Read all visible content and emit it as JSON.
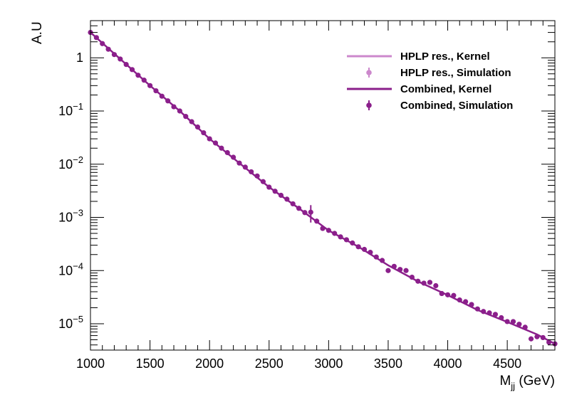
{
  "chart_data": {
    "type": "line",
    "title": "",
    "xlabel": {
      "main": "M",
      "sub": "jj",
      "unit": " (GeV)"
    },
    "ylabel": "A.U",
    "xlim": [
      1000,
      4900
    ],
    "ylim": [
      3.2e-06,
      5
    ],
    "yscale": "log",
    "grid": false,
    "legend_position": "top-right",
    "x_ticks": [
      {
        "value": 1000,
        "label": "1000"
      },
      {
        "value": 1500,
        "label": "1500"
      },
      {
        "value": 2000,
        "label": "2000"
      },
      {
        "value": 2500,
        "label": "2500"
      },
      {
        "value": 3000,
        "label": "3000"
      },
      {
        "value": 3500,
        "label": "3500"
      },
      {
        "value": 4000,
        "label": "4000"
      },
      {
        "value": 4500,
        "label": "4500"
      }
    ],
    "y_ticks": [
      {
        "value": 1,
        "base": "1",
        "exp": ""
      },
      {
        "value": 0.1,
        "base": "10",
        "exp": "−1"
      },
      {
        "value": 0.01,
        "base": "10",
        "exp": "−2"
      },
      {
        "value": 0.001,
        "base": "10",
        "exp": "−3"
      },
      {
        "value": 0.0001,
        "base": "10",
        "exp": "−4"
      },
      {
        "value": 1e-05,
        "base": "10",
        "exp": "−5"
      }
    ],
    "legend": [
      {
        "label": "HPLP res., Kernel",
        "kind": "line",
        "color": "#cc88cc"
      },
      {
        "label": "HPLP res., Simulation",
        "kind": "marker",
        "color": "#cc88cc"
      },
      {
        "label": "Combined, Kernel",
        "kind": "line",
        "color": "#8b1f8b"
      },
      {
        "label": "Combined, Simulation",
        "kind": "marker",
        "color": "#8b1f8b"
      }
    ],
    "series": [
      {
        "name": "Combined, Kernel",
        "kind": "line",
        "color": "#8b1f8b",
        "x": [
          1000,
          1250,
          1500,
          1750,
          2000,
          2250,
          2500,
          2750,
          3000,
          3250,
          3500,
          3750,
          4000,
          4250,
          4500,
          4750,
          4900
        ],
        "y": [
          3.0,
          0.95,
          0.3,
          0.1,
          0.03,
          0.0105,
          0.0037,
          0.00148,
          0.000565,
          0.00028,
          0.000126,
          6.25e-05,
          3.45e-05,
          1.82e-05,
          1.08e-05,
          6.3e-06,
          4.2e-06
        ]
      },
      {
        "name": "Combined, Simulation",
        "kind": "marker",
        "color": "#8b1f8b",
        "x": [
          1000,
          1050,
          1100,
          1150,
          1200,
          1250,
          1300,
          1350,
          1400,
          1450,
          1500,
          1550,
          1600,
          1650,
          1700,
          1750,
          1800,
          1850,
          1900,
          1950,
          2000,
          2050,
          2100,
          2150,
          2200,
          2250,
          2300,
          2350,
          2400,
          2450,
          2500,
          2550,
          2600,
          2650,
          2700,
          2750,
          2800,
          2850,
          2900,
          2950,
          3000,
          3050,
          3100,
          3150,
          3200,
          3250,
          3300,
          3350,
          3400,
          3450,
          3500,
          3550,
          3600,
          3650,
          3700,
          3750,
          3800,
          3850,
          3900,
          3950,
          4000,
          4050,
          4100,
          4150,
          4200,
          4250,
          4300,
          4350,
          4400,
          4450,
          4500,
          4550,
          4600,
          4650,
          4700,
          4750,
          4800,
          4850,
          4900
        ],
        "y": [
          3.0,
          2.4,
          1.85,
          1.45,
          1.15,
          0.95,
          0.75,
          0.6,
          0.47,
          0.38,
          0.3,
          0.24,
          0.19,
          0.155,
          0.12,
          0.1,
          0.079,
          0.063,
          0.05,
          0.039,
          0.03,
          0.025,
          0.02,
          0.0165,
          0.0135,
          0.0105,
          0.0088,
          0.0072,
          0.006,
          0.0047,
          0.0037,
          0.0031,
          0.0026,
          0.0022,
          0.0018,
          0.00148,
          0.00123,
          0.00125,
          0.00085,
          0.00062,
          0.00057,
          0.0005,
          0.00043,
          0.00038,
          0.00033,
          0.00028,
          0.00025,
          0.00022,
          0.00018,
          0.000155,
          0.0001,
          0.00012,
          0.000105,
          0.0001,
          7.5e-05,
          6.3e-05,
          5.8e-05,
          6e-05,
          5.2e-05,
          3.7e-05,
          3.5e-05,
          3.4e-05,
          2.8e-05,
          2.6e-05,
          2.3e-05,
          1.9e-05,
          1.7e-05,
          1.6e-05,
          1.5e-05,
          1.3e-05,
          1.1e-05,
          1.1e-05,
          9.8e-06,
          8.6e-06,
          5.2e-06,
          5.7e-06,
          5.5e-06,
          4.5e-06,
          4.2e-06
        ],
        "yerr": [
          0.15,
          0.12,
          0.09,
          0.07,
          0.05,
          0.04,
          0.03,
          0.025,
          0.02,
          0.016,
          0.012,
          0.01,
          0.008,
          0.006,
          0.005,
          0.004,
          0.003,
          0.0025,
          0.002,
          0.0016,
          0.0012,
          0.001,
          0.0008,
          0.0007,
          0.0006,
          0.0005,
          0.0004,
          0.00035,
          0.0003,
          0.00025,
          0.0002,
          0.00017,
          0.00014,
          0.00012,
          0.0001,
          9e-05,
          8e-05,
          0.00045,
          6e-05,
          4e-05,
          3e-05,
          2.8e-05,
          2.5e-05,
          2.2e-05,
          2e-05,
          1.7e-05,
          1.5e-05,
          1.3e-05,
          1.1e-05,
          1e-05,
          7e-06,
          8e-06,
          7e-06,
          7e-06,
          5e-06,
          4e-06,
          4e-06,
          4e-06,
          3.5e-06,
          2.5e-06,
          2.4e-06,
          2.3e-06,
          2e-06,
          1.8e-06,
          1.6e-06,
          1.4e-06,
          1.2e-06,
          1.1e-06,
          1e-06,
          9e-07,
          8e-07,
          8e-07,
          7e-07,
          9e-07,
          5e-07,
          5e-07,
          5e-07,
          4e-07,
          4e-07
        ]
      }
    ]
  }
}
